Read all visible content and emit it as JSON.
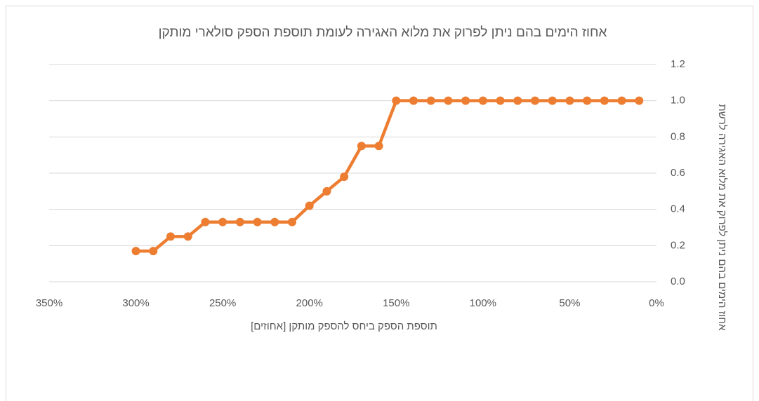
{
  "chart_data": {
    "type": "line",
    "title": "אחוז הימים בהם ניתן לפרוק את מלוא האגירה לעומת תוספת הספק סולארי מותקן",
    "x_label": "תוספת הספק ביחס להספק מותקן [אחוזים]",
    "y_label": "אחוז הימים בהם ניתן לפרוק את מלוא האגירה לרשת",
    "x": [
      300,
      290,
      280,
      270,
      260,
      250,
      240,
      230,
      220,
      210,
      200,
      190,
      180,
      170,
      160,
      150,
      140,
      130,
      120,
      110,
      100,
      90,
      80,
      70,
      60,
      50,
      40,
      30,
      20,
      10
    ],
    "series": [
      {
        "name": "אחוז הימים",
        "color": "#ED7D31",
        "values": [
          0.17,
          0.17,
          0.25,
          0.25,
          0.33,
          0.33,
          0.33,
          0.33,
          0.33,
          0.33,
          0.42,
          0.5,
          0.58,
          0.75,
          0.75,
          1,
          1,
          1,
          1,
          1,
          1,
          1,
          1,
          1,
          1,
          1,
          1,
          1,
          1,
          1
        ]
      }
    ],
    "xlim": [
      350,
      0
    ],
    "xticks": [
      {
        "value": 350,
        "label": "350%"
      },
      {
        "value": 300,
        "label": "300%"
      },
      {
        "value": 250,
        "label": "250%"
      },
      {
        "value": 200,
        "label": "200%"
      },
      {
        "value": 150,
        "label": "150%"
      },
      {
        "value": 100,
        "label": "100%"
      },
      {
        "value": 50,
        "label": "50%"
      },
      {
        "value": 0,
        "label": "0%"
      }
    ],
    "ylim": [
      0,
      1.2
    ],
    "yticks": [
      {
        "value": 0,
        "label": "0.0"
      },
      {
        "value": 0.2,
        "label": "0.2"
      },
      {
        "value": 0.4,
        "label": "0.4"
      },
      {
        "value": 0.6,
        "label": "0.6"
      },
      {
        "value": 0.8,
        "label": "0.8"
      },
      {
        "value": 1,
        "label": "1.0"
      },
      {
        "value": 1.2,
        "label": "1.2"
      }
    ],
    "grid": true,
    "y_axis_side": "right"
  }
}
